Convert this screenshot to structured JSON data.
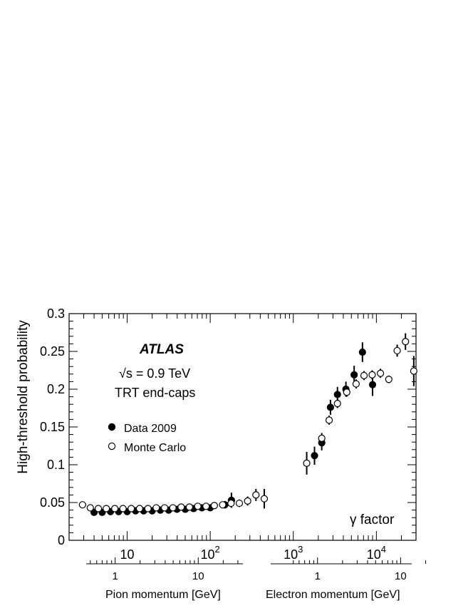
{
  "chart_data": {
    "type": "scatter",
    "title": "",
    "ylabel": "High-threshold probability",
    "xlabel": "γ factor",
    "ylim": [
      0,
      0.3
    ],
    "xscale": "log",
    "xlim": [
      2,
      30000
    ],
    "y_ticks": [
      "0",
      "0.05",
      "0.1",
      "0.15",
      "0.2",
      "0.25",
      "0.3"
    ],
    "x_ticks": [
      {
        "x": 10,
        "base": "10",
        "exp": ""
      },
      {
        "x": 100,
        "base": "10",
        "exp": "2"
      },
      {
        "x": 1000,
        "base": "10",
        "exp": "3"
      },
      {
        "x": 10000,
        "base": "10",
        "exp": "4"
      }
    ],
    "annotations": {
      "experiment": "ATLAS",
      "energy": "√s = 0.9 TeV",
      "detector": "TRT end-caps"
    },
    "legend_placement": "left",
    "series": [
      {
        "name": "Data 2009",
        "marker": "filled-circle",
        "points": [
          {
            "x": 4.0,
            "y": 0.037,
            "err": 0.002
          },
          {
            "x": 5.0,
            "y": 0.037,
            "err": 0.002
          },
          {
            "x": 6.3,
            "y": 0.038,
            "err": 0.002
          },
          {
            "x": 7.9,
            "y": 0.038,
            "err": 0.002
          },
          {
            "x": 10.0,
            "y": 0.038,
            "err": 0.002
          },
          {
            "x": 12.6,
            "y": 0.039,
            "err": 0.002
          },
          {
            "x": 15.8,
            "y": 0.039,
            "err": 0.002
          },
          {
            "x": 20.0,
            "y": 0.039,
            "err": 0.002
          },
          {
            "x": 25.1,
            "y": 0.04,
            "err": 0.002
          },
          {
            "x": 31.6,
            "y": 0.04,
            "err": 0.002
          },
          {
            "x": 39.8,
            "y": 0.041,
            "err": 0.002
          },
          {
            "x": 50.1,
            "y": 0.041,
            "err": 0.002
          },
          {
            "x": 63.1,
            "y": 0.042,
            "err": 0.003
          },
          {
            "x": 79.4,
            "y": 0.043,
            "err": 0.003
          },
          {
            "x": 100,
            "y": 0.043,
            "err": 0.003
          },
          {
            "x": 150,
            "y": 0.047,
            "err": 0.005
          },
          {
            "x": 180,
            "y": 0.053,
            "err": 0.01
          },
          {
            "x": 1800,
            "y": 0.112,
            "err": 0.012
          },
          {
            "x": 2200,
            "y": 0.129,
            "err": 0.01
          },
          {
            "x": 2800,
            "y": 0.176,
            "err": 0.01
          },
          {
            "x": 3400,
            "y": 0.193,
            "err": 0.01
          },
          {
            "x": 4300,
            "y": 0.2,
            "err": 0.01
          },
          {
            "x": 5400,
            "y": 0.219,
            "err": 0.012
          },
          {
            "x": 6800,
            "y": 0.249,
            "err": 0.013
          },
          {
            "x": 9000,
            "y": 0.206,
            "err": 0.015
          }
        ]
      },
      {
        "name": "Monte Carlo",
        "marker": "open-circle",
        "points": [
          {
            "x": 2.9,
            "y": 0.047,
            "err": 0.002
          },
          {
            "x": 3.6,
            "y": 0.043,
            "err": 0.002
          },
          {
            "x": 4.5,
            "y": 0.042,
            "err": 0.002
          },
          {
            "x": 5.6,
            "y": 0.042,
            "err": 0.002
          },
          {
            "x": 7.1,
            "y": 0.042,
            "err": 0.002
          },
          {
            "x": 8.9,
            "y": 0.042,
            "err": 0.002
          },
          {
            "x": 11.2,
            "y": 0.042,
            "err": 0.002
          },
          {
            "x": 14.1,
            "y": 0.042,
            "err": 0.002
          },
          {
            "x": 17.8,
            "y": 0.042,
            "err": 0.002
          },
          {
            "x": 22.4,
            "y": 0.043,
            "err": 0.002
          },
          {
            "x": 28.2,
            "y": 0.043,
            "err": 0.002
          },
          {
            "x": 35.5,
            "y": 0.043,
            "err": 0.002
          },
          {
            "x": 44.7,
            "y": 0.044,
            "err": 0.002
          },
          {
            "x": 56.2,
            "y": 0.044,
            "err": 0.002
          },
          {
            "x": 70.8,
            "y": 0.045,
            "err": 0.003
          },
          {
            "x": 89.1,
            "y": 0.045,
            "err": 0.003
          },
          {
            "x": 112,
            "y": 0.046,
            "err": 0.003
          },
          {
            "x": 141,
            "y": 0.047,
            "err": 0.004
          },
          {
            "x": 178,
            "y": 0.049,
            "err": 0.005
          },
          {
            "x": 224,
            "y": 0.049,
            "err": 0.005
          },
          {
            "x": 282,
            "y": 0.052,
            "err": 0.006
          },
          {
            "x": 355,
            "y": 0.06,
            "err": 0.008
          },
          {
            "x": 447,
            "y": 0.055,
            "err": 0.013
          },
          {
            "x": 1450,
            "y": 0.102,
            "err": 0.015
          },
          {
            "x": 2200,
            "y": 0.135,
            "err": 0.007
          },
          {
            "x": 2700,
            "y": 0.159,
            "err": 0.006
          },
          {
            "x": 3400,
            "y": 0.181,
            "err": 0.006
          },
          {
            "x": 4400,
            "y": 0.196,
            "err": 0.006
          },
          {
            "x": 5700,
            "y": 0.207,
            "err": 0.006
          },
          {
            "x": 7100,
            "y": 0.218,
            "err": 0.006
          },
          {
            "x": 8900,
            "y": 0.219,
            "err": 0.006
          },
          {
            "x": 11200,
            "y": 0.221,
            "err": 0.006
          },
          {
            "x": 14100,
            "y": 0.213,
            "err": 0.005
          },
          {
            "x": 17800,
            "y": 0.251,
            "err": 0.008
          },
          {
            "x": 22400,
            "y": 0.263,
            "err": 0.011
          },
          {
            "x": 28200,
            "y": 0.224,
            "err": 0.02
          }
        ]
      }
    ],
    "secondary_axes": [
      {
        "label": "Pion momentum [GeV]",
        "ticks": [
          {
            "label": "1",
            "gamma": 7.17
          },
          {
            "label": "10",
            "gamma": 71.7
          }
        ],
        "minor_gamma": [
          3.6,
          4.3,
          5.0,
          5.7,
          6.5,
          14.3,
          21.5,
          28.7,
          35.8,
          43.0,
          50.2,
          57.3,
          64.5,
          143.3,
          215
        ]
      },
      {
        "label": "Electron momentum [GeV]",
        "ticks": [
          {
            "label": "1",
            "gamma": 1957
          },
          {
            "label": "10",
            "gamma": 19570
          }
        ],
        "minor_gamma": [
          1000,
          1174,
          1370,
          1566,
          1761,
          3914,
          5871,
          7828,
          9785,
          11742,
          13699,
          15656,
          17613,
          39140
        ]
      }
    ]
  }
}
